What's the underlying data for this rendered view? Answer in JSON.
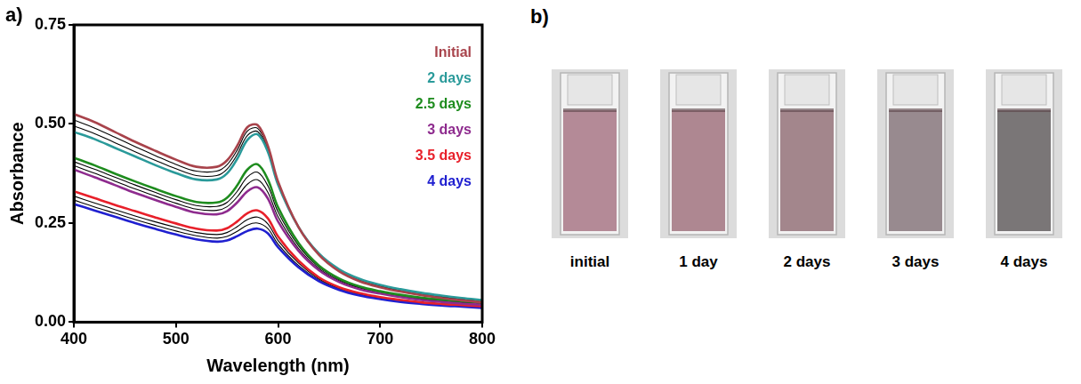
{
  "chart_data": {
    "type": "line",
    "x_label": "Wavelength (nm)",
    "y_label": "Absorbance",
    "x": [
      400,
      420,
      440,
      460,
      480,
      500,
      520,
      540,
      550,
      560,
      570,
      580,
      590,
      600,
      620,
      640,
      660,
      680,
      700,
      720,
      740,
      760,
      780,
      800
    ],
    "series": [
      {
        "name": "Initial",
        "color": "#a8434b",
        "values": [
          0.525,
          0.505,
          0.48,
          0.455,
          0.432,
          0.41,
          0.392,
          0.392,
          0.408,
          0.445,
          0.492,
          0.497,
          0.445,
          0.355,
          0.24,
          0.17,
          0.128,
          0.103,
          0.088,
          0.077,
          0.068,
          0.061,
          0.055,
          0.05
        ]
      },
      {
        "color": "#000000",
        "values": [
          0.51,
          0.49,
          0.467,
          0.443,
          0.42,
          0.398,
          0.381,
          0.381,
          0.397,
          0.434,
          0.482,
          0.489,
          0.44,
          0.352,
          0.24,
          0.171,
          0.13,
          0.105,
          0.09,
          0.079,
          0.07,
          0.063,
          0.057,
          0.052
        ]
      },
      {
        "color": "#000000",
        "values": [
          0.495,
          0.476,
          0.453,
          0.43,
          0.408,
          0.387,
          0.37,
          0.37,
          0.386,
          0.423,
          0.471,
          0.481,
          0.435,
          0.349,
          0.24,
          0.172,
          0.131,
          0.107,
          0.092,
          0.081,
          0.072,
          0.065,
          0.059,
          0.054
        ]
      },
      {
        "name": "2 days",
        "color": "#2a9a9a",
        "values": [
          0.48,
          0.462,
          0.44,
          0.418,
          0.396,
          0.376,
          0.36,
          0.36,
          0.375,
          0.412,
          0.46,
          0.474,
          0.43,
          0.347,
          0.24,
          0.173,
          0.133,
          0.109,
          0.094,
          0.083,
          0.074,
          0.067,
          0.061,
          0.056
        ]
      },
      {
        "name": "2.5 days",
        "color": "#1e8c1e",
        "values": [
          0.415,
          0.396,
          0.375,
          0.355,
          0.336,
          0.318,
          0.303,
          0.302,
          0.314,
          0.345,
          0.385,
          0.398,
          0.36,
          0.29,
          0.2,
          0.143,
          0.11,
          0.09,
          0.078,
          0.069,
          0.062,
          0.057,
          0.053,
          0.05
        ]
      },
      {
        "color": "#000000",
        "values": [
          0.405,
          0.386,
          0.366,
          0.346,
          0.327,
          0.309,
          0.294,
          0.292,
          0.302,
          0.33,
          0.366,
          0.378,
          0.344,
          0.278,
          0.193,
          0.139,
          0.107,
          0.088,
          0.076,
          0.067,
          0.06,
          0.055,
          0.051,
          0.048
        ]
      },
      {
        "color": "#000000",
        "values": [
          0.395,
          0.376,
          0.356,
          0.336,
          0.318,
          0.3,
          0.285,
          0.282,
          0.291,
          0.316,
          0.348,
          0.359,
          0.328,
          0.266,
          0.186,
          0.135,
          0.104,
          0.086,
          0.074,
          0.065,
          0.058,
          0.053,
          0.049,
          0.046
        ]
      },
      {
        "name": "3 days",
        "color": "#8e2b8e",
        "values": [
          0.385,
          0.366,
          0.346,
          0.326,
          0.308,
          0.291,
          0.276,
          0.272,
          0.28,
          0.302,
          0.33,
          0.34,
          0.312,
          0.254,
          0.18,
          0.131,
          0.101,
          0.083,
          0.072,
          0.063,
          0.056,
          0.051,
          0.047,
          0.044
        ]
      },
      {
        "name": "3.5 days",
        "color": "#e8202a",
        "values": [
          0.33,
          0.313,
          0.296,
          0.28,
          0.264,
          0.249,
          0.236,
          0.231,
          0.237,
          0.254,
          0.275,
          0.282,
          0.262,
          0.216,
          0.155,
          0.113,
          0.088,
          0.073,
          0.063,
          0.056,
          0.05,
          0.046,
          0.043,
          0.04
        ]
      },
      {
        "color": "#000000",
        "values": [
          0.318,
          0.301,
          0.284,
          0.268,
          0.253,
          0.239,
          0.226,
          0.221,
          0.226,
          0.241,
          0.259,
          0.265,
          0.248,
          0.206,
          0.149,
          0.109,
          0.085,
          0.071,
          0.061,
          0.054,
          0.049,
          0.045,
          0.042,
          0.039
        ]
      },
      {
        "color": "#000000",
        "values": [
          0.308,
          0.291,
          0.275,
          0.259,
          0.244,
          0.23,
          0.218,
          0.212,
          0.216,
          0.229,
          0.245,
          0.25,
          0.236,
          0.197,
          0.143,
          0.106,
          0.083,
          0.069,
          0.06,
          0.053,
          0.048,
          0.044,
          0.041,
          0.038
        ]
      },
      {
        "name": "4 days",
        "color": "#2020d0",
        "values": [
          0.298,
          0.282,
          0.266,
          0.25,
          0.235,
          0.221,
          0.209,
          0.203,
          0.206,
          0.217,
          0.23,
          0.236,
          0.224,
          0.189,
          0.138,
          0.103,
          0.081,
          0.067,
          0.058,
          0.051,
          0.046,
          0.042,
          0.039,
          0.036
        ]
      }
    ],
    "xlim": [
      400,
      800
    ],
    "xticks": [
      400,
      500,
      600,
      700,
      800
    ],
    "ylim": [
      0,
      0.75
    ],
    "yticks": [
      {
        "value": 0,
        "label": "0.00"
      },
      0.25,
      {
        "value": 0.5,
        "label": "0.50"
      },
      0.75
    ],
    "grid": false,
    "legend": "upper right"
  },
  "panels": {
    "a": "a)",
    "b": "b)"
  },
  "photos": [
    {
      "label": "initial",
      "color": "#b48a97"
    },
    {
      "label": "1 day",
      "color": "#ae8791"
    },
    {
      "label": "2 days",
      "color": "#a3868c"
    },
    {
      "label": "3 days",
      "color": "#988a8f"
    },
    {
      "label": "4 days",
      "color": "#7a7677"
    }
  ]
}
